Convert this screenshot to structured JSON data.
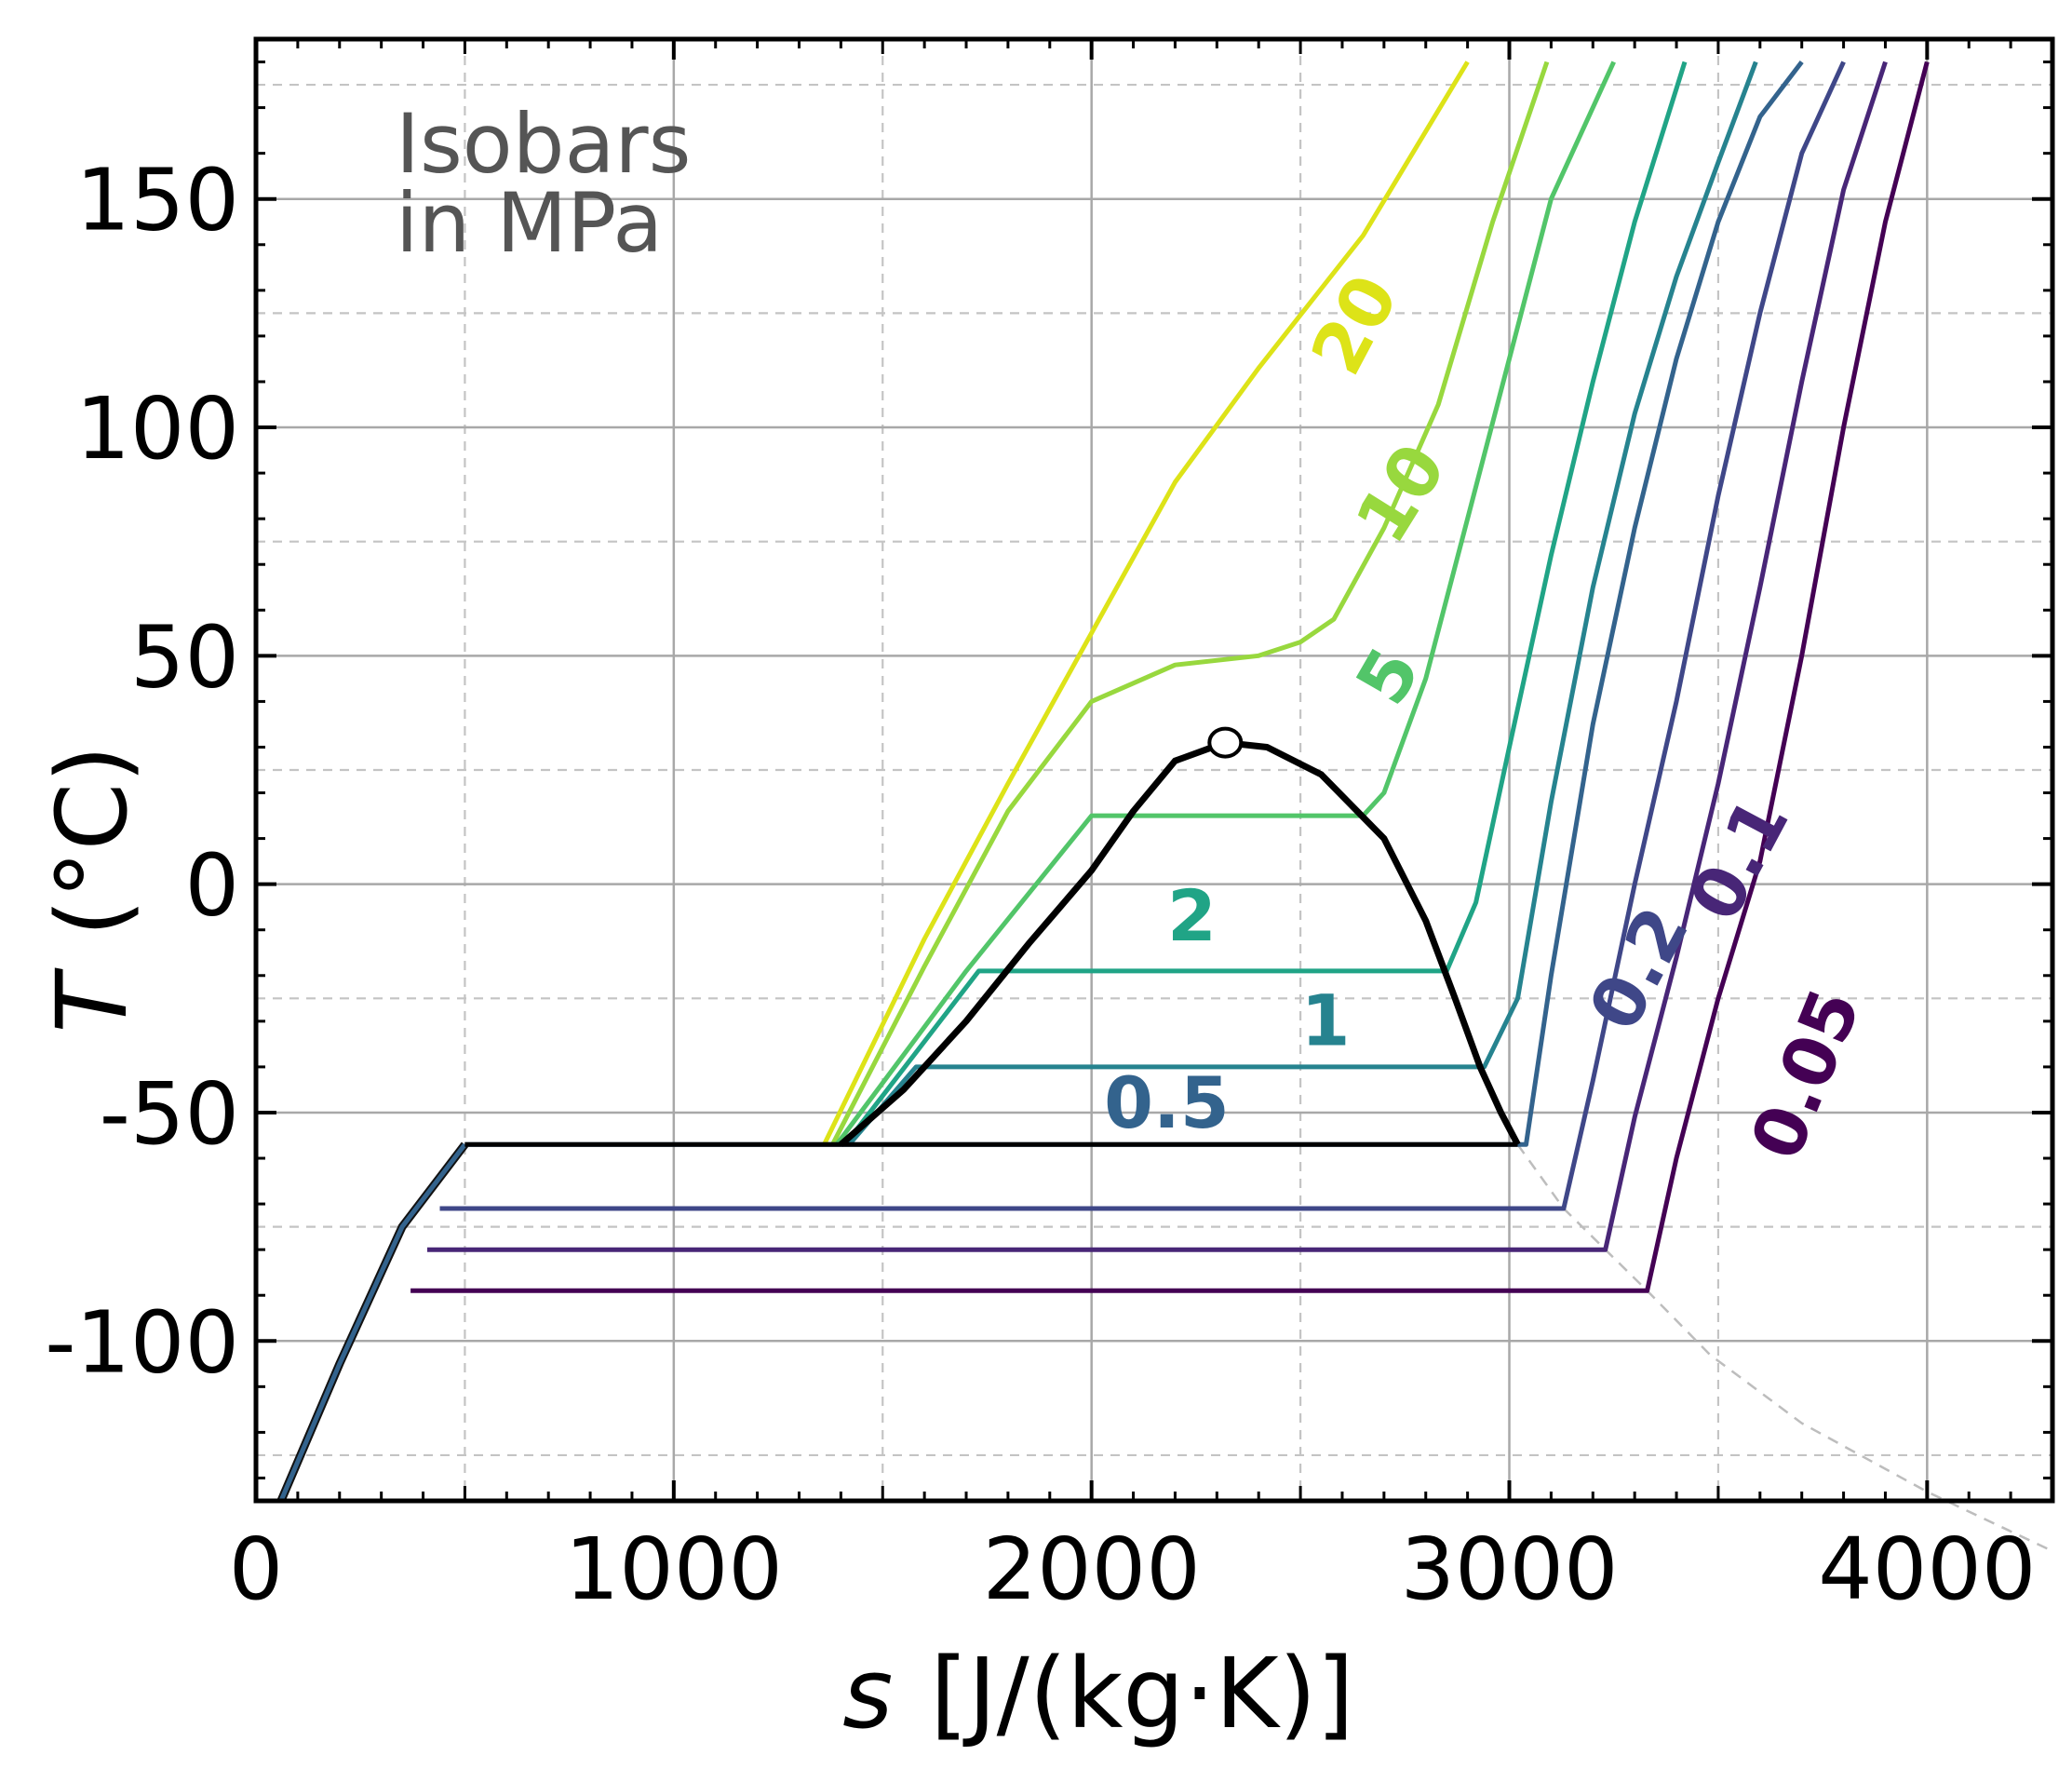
{
  "chart_data": {
    "type": "line",
    "title": "",
    "xlabel": {
      "symbol": "s",
      "unit": "[J/(kg·K)]"
    },
    "ylabel": {
      "symbol": "T",
      "unit": "(°C)"
    },
    "xlim": [
      0,
      4300
    ],
    "ylim": [
      -135,
      185
    ],
    "x_ticks": [
      0,
      1000,
      2000,
      3000,
      4000
    ],
    "x_tick_labels": [
      "0",
      "1000",
      "2000",
      "3000",
      "4000"
    ],
    "y_ticks": [
      -100,
      -50,
      0,
      50,
      100,
      150
    ],
    "y_tick_labels": [
      "-100",
      "-50",
      "0",
      "50",
      "100",
      "150"
    ],
    "grid": true,
    "annotation": {
      "line1": "Isobars",
      "line2": "in MPa"
    },
    "critical_point": {
      "x": 2320,
      "y": 31
    },
    "saturation_dome": [
      [
        1400,
        -57
      ],
      [
        1550,
        -45
      ],
      [
        1700,
        -30
      ],
      [
        1850,
        -13
      ],
      [
        2000,
        3
      ],
      [
        2100,
        16
      ],
      [
        2200,
        27
      ],
      [
        2320,
        31
      ],
      [
        2420,
        30
      ],
      [
        2550,
        24
      ],
      [
        2700,
        10
      ],
      [
        2800,
        -8
      ],
      [
        2870,
        -25
      ],
      [
        2930,
        -40
      ],
      [
        2980,
        -50
      ],
      [
        3020,
        -57
      ]
    ],
    "solid_melt_line": [
      [
        60,
        -135
      ],
      [
        200,
        -105
      ],
      [
        350,
        -75
      ],
      [
        500,
        -57
      ]
    ],
    "triple_line": [
      [
        500,
        -57
      ],
      [
        3020,
        -57
      ]
    ],
    "sublimation_boundary": [
      [
        3020,
        -57
      ],
      [
        3130,
        -71
      ],
      [
        3230,
        -80
      ],
      [
        3330,
        -89
      ],
      [
        3480,
        -103
      ],
      [
        3700,
        -118
      ],
      [
        4000,
        -133
      ],
      [
        4300,
        -146
      ]
    ],
    "series": [
      {
        "name": "20",
        "color": "#dde318",
        "label": "20",
        "x": [
          1360,
          1600,
          1800,
          2000,
          2200,
          2400,
          2650,
          2900
        ],
        "y": [
          -57,
          -12,
          22,
          55,
          88,
          113,
          142,
          180
        ]
      },
      {
        "name": "10",
        "color": "#98d83e",
        "label": "10",
        "x": [
          1380,
          1600,
          1800,
          2000,
          2200,
          2400,
          2500,
          2580,
          2700,
          2830,
          2960,
          3090
        ],
        "y": [
          -57,
          -18,
          16,
          40,
          48,
          50,
          53,
          58,
          78,
          105,
          145,
          180
        ]
      },
      {
        "name": "5",
        "color": "#52c569",
        "label": "5",
        "x": [
          1390,
          1700,
          2000,
          2650,
          2700,
          2800,
          2900,
          3000,
          3100,
          3250
        ],
        "y": [
          -57,
          -19,
          15,
          15,
          20,
          45,
          80,
          115,
          150,
          180
        ]
      },
      {
        "name": "2",
        "color": "#20a486",
        "label": "2",
        "x": [
          1410,
          1730,
          2850,
          2920,
          3000,
          3100,
          3200,
          3300,
          3420
        ],
        "y": [
          -57,
          -19,
          -19,
          -4,
          30,
          72,
          110,
          145,
          180
        ]
      },
      {
        "name": "1",
        "color": "#26838f",
        "label": "1",
        "x": [
          1420,
          1580,
          2940,
          3020,
          3100,
          3200,
          3300,
          3400,
          3500,
          3590
        ],
        "y": [
          -57,
          -40,
          -40,
          -25,
          18,
          65,
          103,
          133,
          158,
          180
        ]
      },
      {
        "name": "0.5",
        "color": "#33638d",
        "label": "0.5",
        "x": [
          500,
          3040,
          3100,
          3200,
          3300,
          3400,
          3500,
          3600,
          3700
        ],
        "y": [
          -57,
          -57,
          -20,
          35,
          78,
          115,
          145,
          168,
          180
        ]
      },
      {
        "name": "0.2",
        "color": "#3f4788",
        "label": "0.2",
        "x": [
          440,
          3130,
          3200,
          3300,
          3400,
          3500,
          3600,
          3700,
          3800
        ],
        "y": [
          -71,
          -71,
          -43,
          0,
          40,
          85,
          125,
          160,
          180
        ]
      },
      {
        "name": "0.1",
        "color": "#482677",
        "label": "0.1",
        "x": [
          410,
          3230,
          3300,
          3400,
          3500,
          3600,
          3700,
          3800,
          3900
        ],
        "y": [
          -80,
          -80,
          -51,
          -16,
          22,
          65,
          110,
          152,
          180
        ]
      },
      {
        "name": "0.05",
        "color": "#440154",
        "label": "0.05",
        "x": [
          370,
          3330,
          3400,
          3500,
          3600,
          3700,
          3800,
          3900,
          4000
        ],
        "y": [
          -89,
          -89,
          -60,
          -25,
          5,
          50,
          100,
          145,
          180
        ]
      }
    ]
  }
}
